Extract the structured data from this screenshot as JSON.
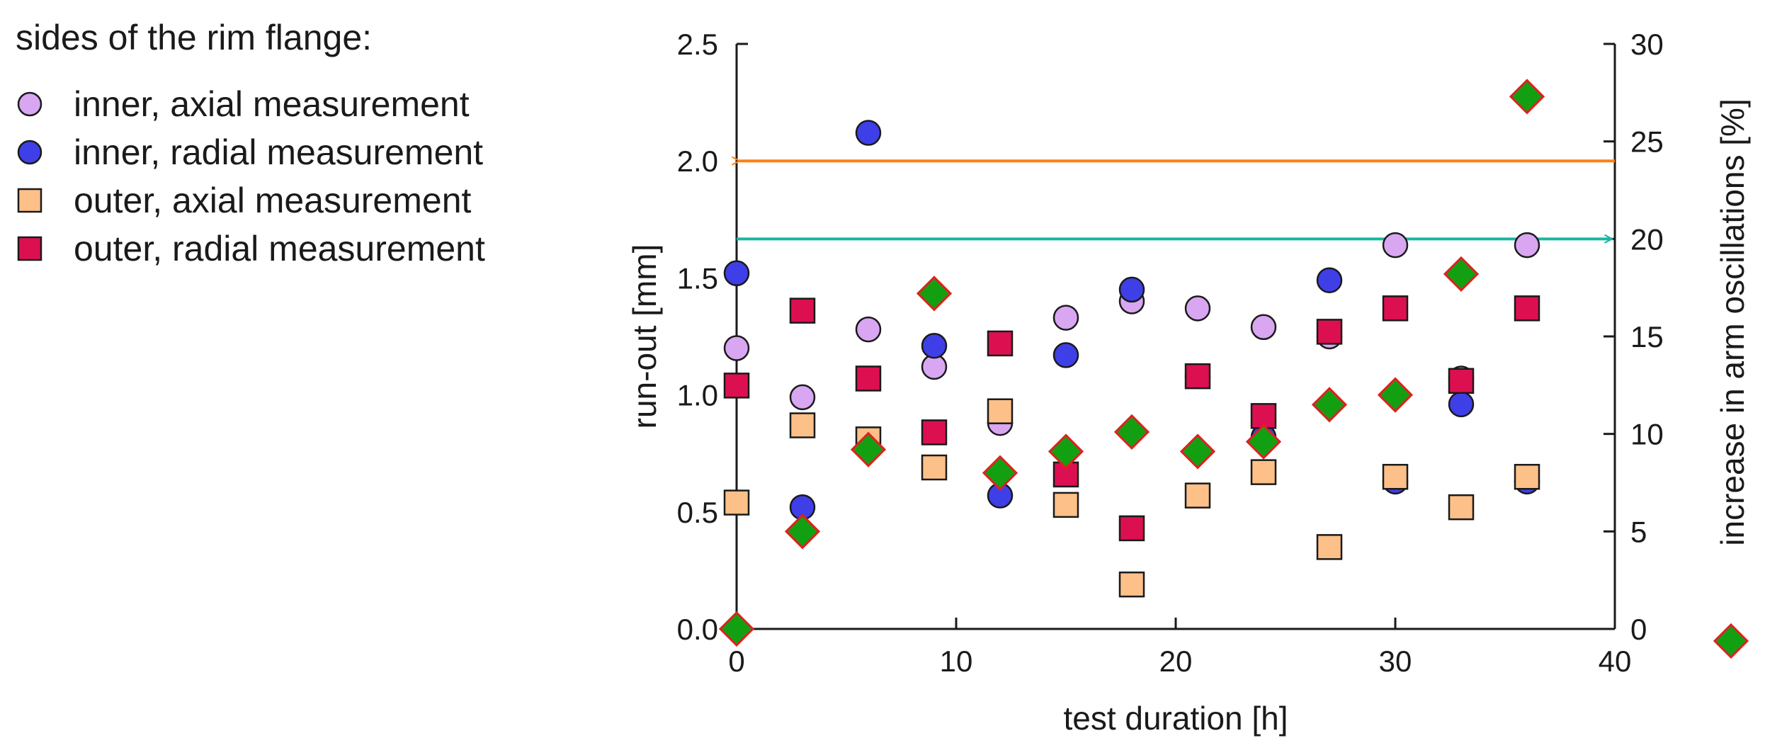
{
  "chart_data": {
    "type": "scatter",
    "title": "",
    "legend_title": "sides of the rim flange:",
    "legend_position": "top-left",
    "xlabel": "test duration [h]",
    "ylabel": "run-out [mm]",
    "y2label": "increase in arm oscillations [%]",
    "xlim": [
      0,
      40
    ],
    "ylim": [
      0,
      2.5
    ],
    "y2lim": [
      0,
      30
    ],
    "xticks": [
      "0",
      "10",
      "20",
      "30",
      "40"
    ],
    "yticks": [
      "0.0",
      "0.5",
      "1.0",
      "1.5",
      "2.0",
      "2.5"
    ],
    "y2ticks": [
      "0",
      "5",
      "10",
      "15",
      "20",
      "25",
      "30"
    ],
    "grid": false,
    "series": [
      {
        "name": "inner, axial measurement",
        "axis": "left",
        "marker": "circle",
        "color": "#d9a6f2",
        "points": [
          [
            0,
            1.2
          ],
          [
            3,
            0.99
          ],
          [
            6,
            1.28
          ],
          [
            9,
            1.12
          ],
          [
            12,
            0.88
          ],
          [
            15,
            1.33
          ],
          [
            18,
            1.4
          ],
          [
            21,
            1.37
          ],
          [
            24,
            1.29
          ],
          [
            27,
            1.25
          ],
          [
            30,
            1.64
          ],
          [
            33,
            1.07
          ],
          [
            36,
            1.64
          ]
        ]
      },
      {
        "name": "inner, radial measurement",
        "axis": "left",
        "marker": "circle",
        "color": "#3f3fe8",
        "points": [
          [
            0,
            1.52
          ],
          [
            3,
            0.52
          ],
          [
            6,
            2.12
          ],
          [
            9,
            1.21
          ],
          [
            12,
            0.57
          ],
          [
            15,
            1.17
          ],
          [
            18,
            1.45
          ],
          [
            21,
            1.08
          ],
          [
            24,
            0.82
          ],
          [
            27,
            1.49
          ],
          [
            30,
            0.63
          ],
          [
            33,
            0.96
          ],
          [
            36,
            0.63
          ]
        ]
      },
      {
        "name": "outer, axial measurement",
        "axis": "left",
        "marker": "square",
        "color": "#fcc088",
        "points": [
          [
            0,
            0.54
          ],
          [
            3,
            0.87
          ],
          [
            6,
            0.81
          ],
          [
            9,
            0.69
          ],
          [
            12,
            0.93
          ],
          [
            15,
            0.53
          ],
          [
            18,
            0.19
          ],
          [
            21,
            0.57
          ],
          [
            24,
            0.67
          ],
          [
            27,
            0.35
          ],
          [
            30,
            0.65
          ],
          [
            33,
            0.52
          ],
          [
            36,
            0.65
          ]
        ]
      },
      {
        "name": "outer, radial measurement",
        "axis": "left",
        "marker": "square",
        "color": "#dc1050",
        "points": [
          [
            0,
            1.04
          ],
          [
            3,
            1.36
          ],
          [
            6,
            1.07
          ],
          [
            9,
            0.84
          ],
          [
            12,
            1.22
          ],
          [
            15,
            0.66
          ],
          [
            18,
            0.43
          ],
          [
            21,
            1.08
          ],
          [
            24,
            0.91
          ],
          [
            27,
            1.27
          ],
          [
            30,
            1.37
          ],
          [
            33,
            1.06
          ],
          [
            36,
            1.37
          ]
        ]
      },
      {
        "name": "increase in arm oscillations",
        "axis": "right",
        "marker": "diamond",
        "color": "#12a012",
        "edgecolor": "#e02020",
        "points": [
          [
            0,
            0
          ],
          [
            3,
            5
          ],
          [
            6,
            9.2
          ],
          [
            9,
            17.2
          ],
          [
            12,
            8
          ],
          [
            15,
            9.1
          ],
          [
            18,
            10.1
          ],
          [
            21,
            9.1
          ],
          [
            24,
            9.6
          ],
          [
            27,
            11.5
          ],
          [
            30,
            12
          ],
          [
            33,
            18.2
          ],
          [
            36,
            27.3
          ]
        ]
      }
    ],
    "annotations": [
      {
        "type": "arrow",
        "direction": "left",
        "axis": "left",
        "y": 2.0,
        "color": "#ff8010"
      },
      {
        "type": "arrow",
        "direction": "right",
        "axis": "right",
        "y": 20.0,
        "color": "#18b8a0"
      }
    ]
  }
}
